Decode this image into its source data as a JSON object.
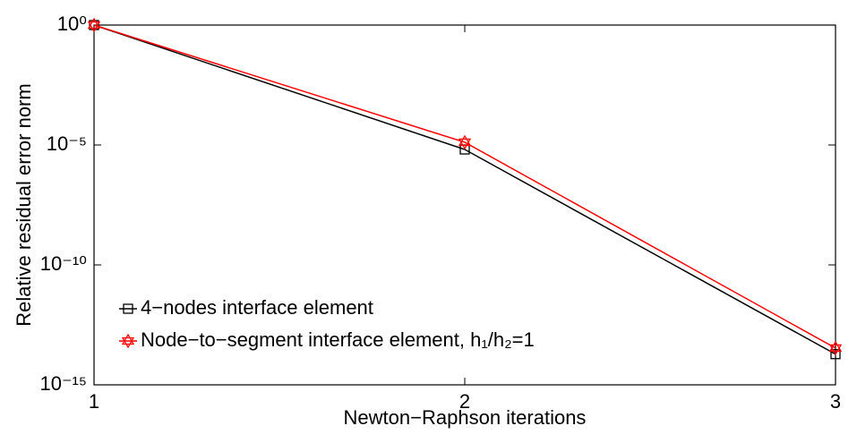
{
  "chart_data": {
    "type": "line",
    "x": [
      1,
      2,
      3
    ],
    "xlabel": "Newton−Raphson iterations",
    "ylabel": "Relative residual error norm",
    "xlim": [
      1,
      3
    ],
    "xticks": [
      1,
      2,
      3
    ],
    "ylim": [
      1e-15,
      1
    ],
    "ylog": true,
    "yticks": [
      {
        "value": 1,
        "label": "10⁰"
      },
      {
        "value": 1e-05,
        "label": "10⁻⁵"
      },
      {
        "value": 1e-10,
        "label": "10⁻¹⁰"
      },
      {
        "value": 1e-15,
        "label": "10⁻¹⁵"
      }
    ],
    "legend": "lower left",
    "series": [
      {
        "name": "4−nodes interface element",
        "color": "#000000",
        "marker": "square",
        "values": [
          1,
          6.5e-06,
          1.9e-14
        ]
      },
      {
        "name": "Node−to−segment interface element, h₁/h₂=1",
        "color": "#ff0000",
        "marker": "hexagram",
        "values": [
          1,
          1.3e-05,
          3.4e-14
        ]
      }
    ]
  }
}
